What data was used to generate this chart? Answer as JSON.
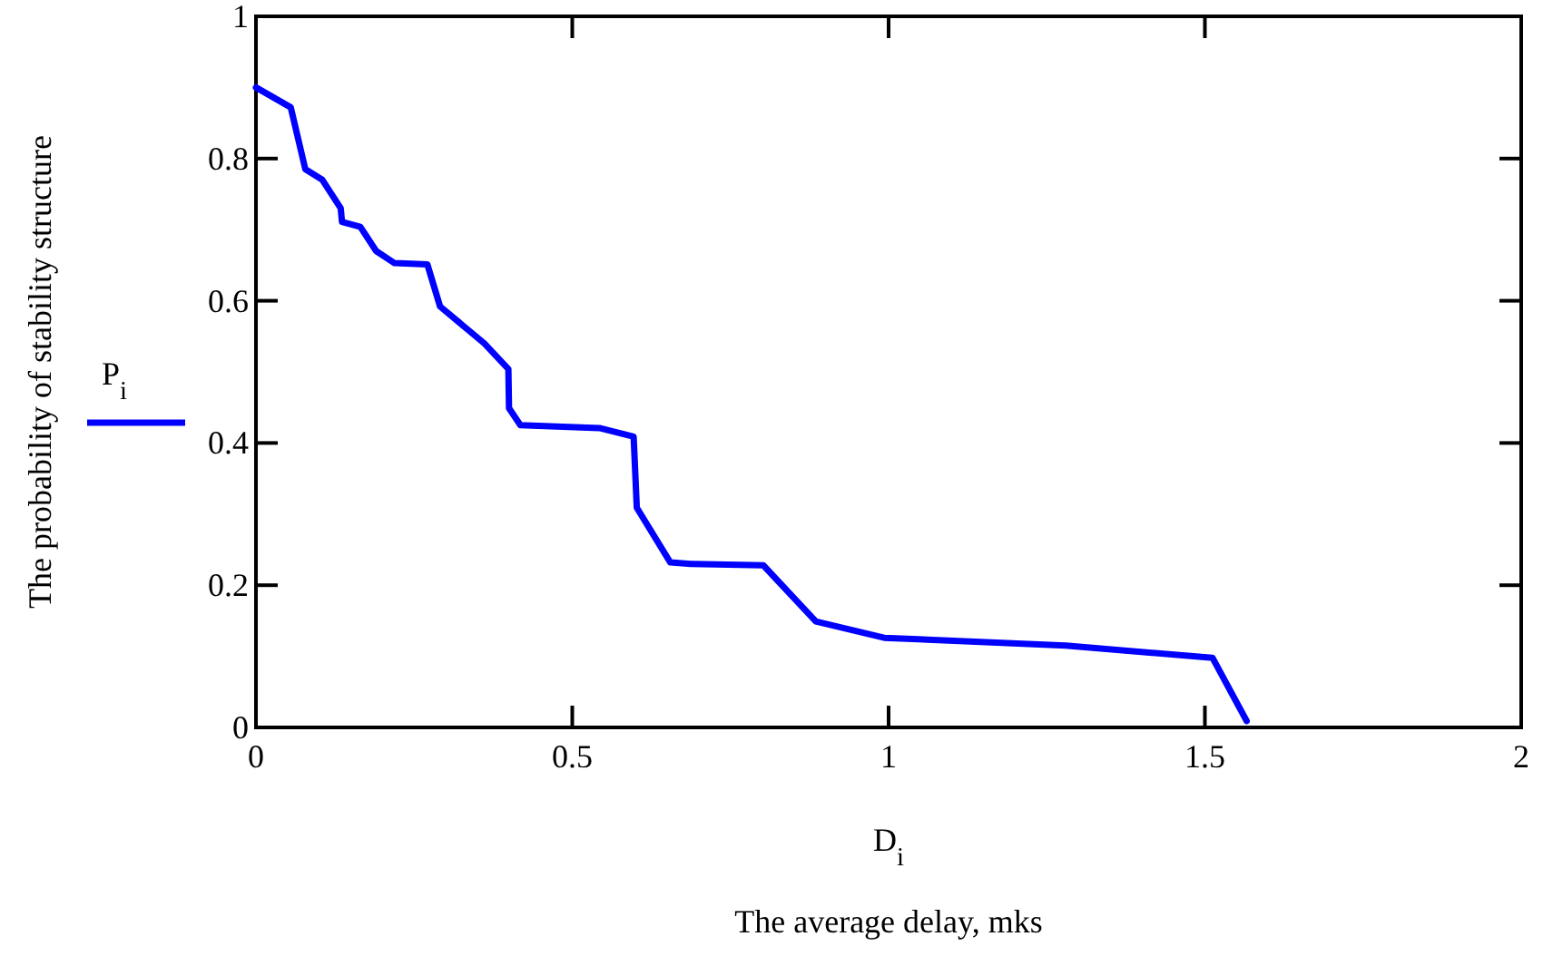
{
  "chart_data": {
    "type": "line",
    "xlabel": "D$_{i}$",
    "ylabel": "The probability of stability structure",
    "annotations": [
      "The average delay, mks"
    ],
    "xlim": [
      0,
      2
    ],
    "ylim": [
      0,
      1
    ],
    "xticks": [
      0,
      0.5,
      1,
      1.5,
      2
    ],
    "yticks": [
      0,
      0.2,
      0.4,
      0.6,
      0.8,
      1
    ],
    "grid": false,
    "legend": "left",
    "marker": "none",
    "line_style": "solid",
    "series": [
      {
        "name": "P$_{i}$",
        "color": "#0000ff",
        "x": [
          0,
          0.055,
          0.078,
          0.105,
          0.134,
          0.136,
          0.165,
          0.19,
          0.219,
          0.271,
          0.291,
          0.361,
          0.399,
          0.4,
          0.418,
          0.543,
          0.597,
          0.602,
          0.655,
          0.687,
          0.802,
          0.885,
          0.993,
          1.28,
          1.512,
          1.566
        ],
        "values": [
          0.9,
          0.872,
          0.785,
          0.77,
          0.73,
          0.711,
          0.704,
          0.67,
          0.653,
          0.651,
          0.592,
          0.54,
          0.504,
          0.449,
          0.425,
          0.421,
          0.409,
          0.309,
          0.232,
          0.23,
          0.228,
          0.149,
          0.126,
          0.115,
          0.098,
          0.009
        ]
      }
    ]
  }
}
